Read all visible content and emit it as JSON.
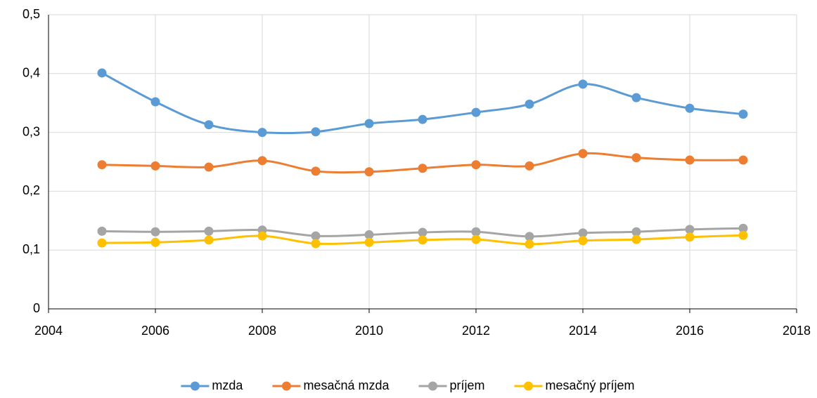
{
  "chart_data": {
    "type": "line",
    "x": [
      2005,
      2006,
      2007,
      2008,
      2009,
      2010,
      2011,
      2012,
      2013,
      2014,
      2015,
      2016,
      2017
    ],
    "series": [
      {
        "name": "mzda",
        "color": "#5b9bd5",
        "values": [
          0.401,
          0.352,
          0.313,
          0.3,
          0.301,
          0.315,
          0.322,
          0.334,
          0.348,
          0.382,
          0.359,
          0.341,
          0.331
        ]
      },
      {
        "name": "mesačná mzda",
        "color": "#ed7d31",
        "values": [
          0.245,
          0.243,
          0.241,
          0.252,
          0.234,
          0.233,
          0.239,
          0.245,
          0.243,
          0.264,
          0.257,
          0.253,
          0.253
        ]
      },
      {
        "name": "príjem",
        "color": "#a5a5a5",
        "values": [
          0.132,
          0.131,
          0.132,
          0.134,
          0.124,
          0.126,
          0.13,
          0.131,
          0.123,
          0.129,
          0.131,
          0.135,
          0.137
        ]
      },
      {
        "name": "mesačný príjem",
        "color": "#ffc000",
        "values": [
          0.112,
          0.113,
          0.117,
          0.124,
          0.111,
          0.113,
          0.117,
          0.118,
          0.11,
          0.116,
          0.118,
          0.122,
          0.125
        ]
      }
    ],
    "xlim": [
      2004,
      2018
    ],
    "xticks": [
      2004,
      2006,
      2008,
      2010,
      2012,
      2014,
      2016,
      2018
    ],
    "ylim": [
      0,
      0.5
    ],
    "yticks": [
      0,
      {
        "value": 0.1,
        "label": "0,1"
      },
      {
        "value": 0.2,
        "label": "0,2"
      },
      {
        "value": 0.3,
        "label": "0,3"
      },
      {
        "value": 0.4,
        "label": "0,4"
      },
      {
        "value": 0.5,
        "label": "0,5"
      }
    ],
    "grid": true,
    "smooth": true,
    "legend": "bottom"
  }
}
